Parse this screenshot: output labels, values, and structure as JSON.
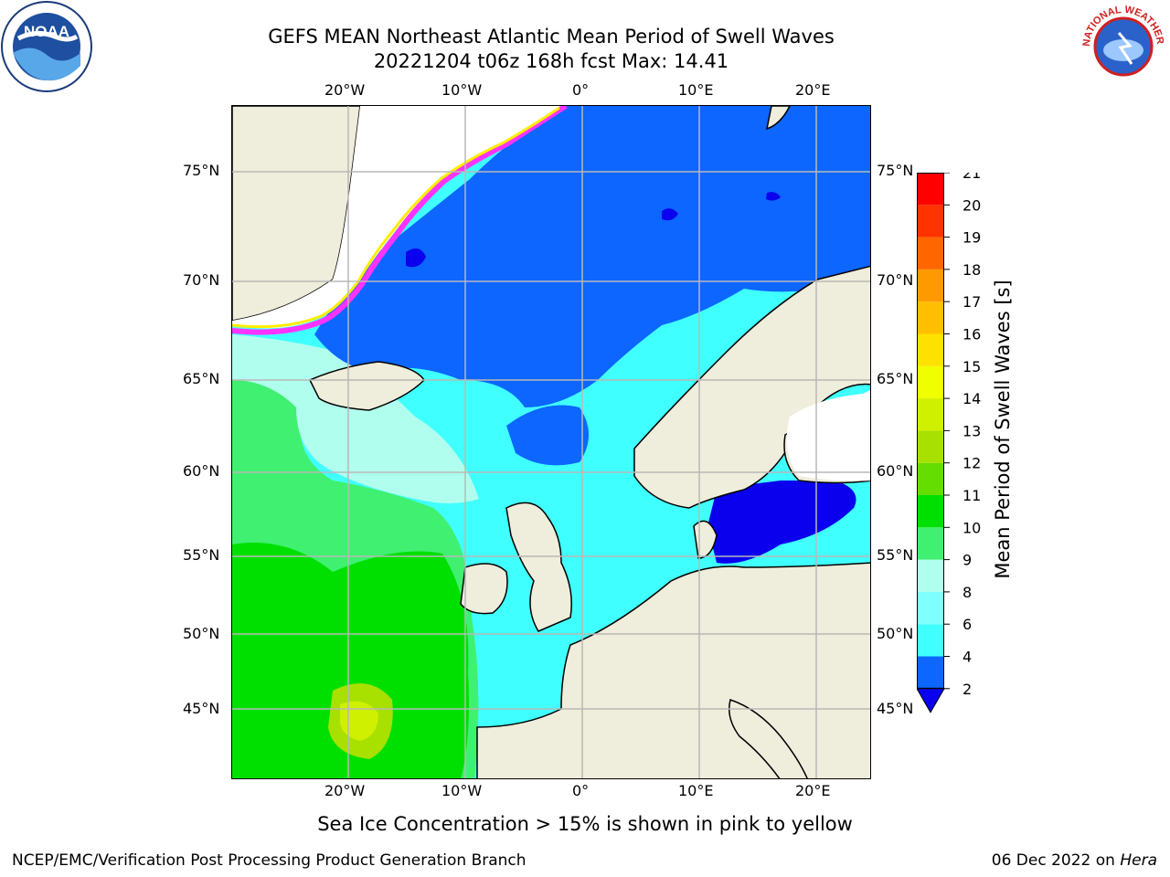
{
  "title": {
    "line1": "GEFS MEAN Northeast Atlantic Mean Period of Swell Waves",
    "line2": "20221204 t06z 168h fcst   Max: 14.41"
  },
  "axes": {
    "lon_labels": [
      "20°W",
      "10°W",
      "0°",
      "10°E",
      "20°E"
    ],
    "lat_labels": [
      "75°N",
      "70°N",
      "65°N",
      "60°N",
      "55°N",
      "50°N",
      "45°N"
    ]
  },
  "colorbar": {
    "label": "Mean Period of Swell Waves [s]",
    "ticks": [
      "2",
      "4",
      "6",
      "8",
      "9",
      "10",
      "11",
      "12",
      "13",
      "14",
      "15",
      "16",
      "17",
      "18",
      "19",
      "20",
      "21"
    ],
    "colors": [
      "#0c66ff",
      "#00ecff",
      "#40ffff",
      "#80ffff",
      "#b0ffee",
      "#40f070",
      "#00e000",
      "#66dd00",
      "#a8e000",
      "#cff000",
      "#f0ff00",
      "#ffe100",
      "#ffbf00",
      "#ff9900",
      "#ff6600",
      "#ff3300",
      "#ff0000"
    ],
    "under_color": "#0a00ee"
  },
  "map": {
    "region": "Northeast Atlantic",
    "land_color": "#efeddb",
    "ice_color": "#ffffff",
    "grid_color": "#b8b8b8"
  },
  "note": "Sea Ice Concentration > 15% is shown in pink to yellow",
  "footer": {
    "left": "NCEP/EMC/Verification Post Processing Product Generation Branch",
    "date": "06 Dec 2022 on",
    "machine": "Hera"
  },
  "logos": {
    "noaa": "NOAA",
    "nws": "NATIONAL WEATHER SERVICE"
  }
}
